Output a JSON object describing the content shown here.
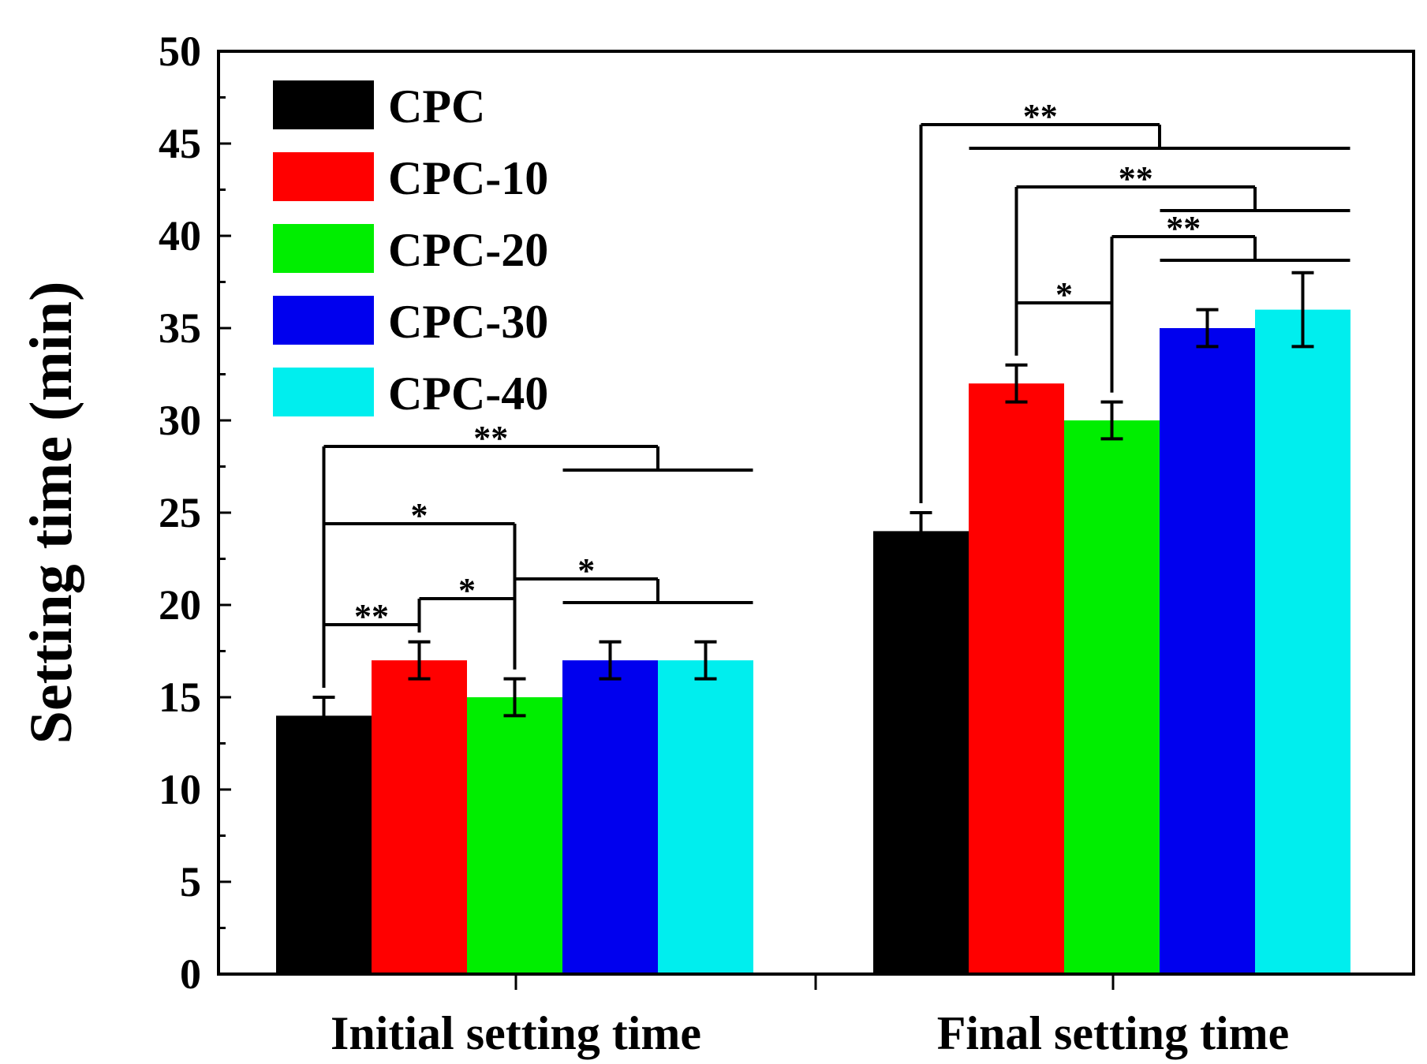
{
  "chart_data": {
    "type": "bar",
    "title": "",
    "xlabel": "",
    "ylabel": "Setting time (min)",
    "ylim": [
      0,
      50
    ],
    "yticks": [
      0,
      5,
      10,
      15,
      20,
      25,
      30,
      35,
      40,
      45,
      50
    ],
    "categories": [
      "Initial setting time",
      "Final setting time"
    ],
    "series": [
      {
        "name": "CPC",
        "color": "#000000",
        "values": [
          14,
          24
        ],
        "errors": [
          1,
          1
        ]
      },
      {
        "name": "CPC-10",
        "color": "#ff0000",
        "values": [
          17,
          32
        ],
        "errors": [
          1,
          1
        ]
      },
      {
        "name": "CPC-20",
        "color": "#00ee00",
        "values": [
          15,
          30
        ],
        "errors": [
          1,
          1
        ]
      },
      {
        "name": "CPC-30",
        "color": "#0000ee",
        "values": [
          17,
          35
        ],
        "errors": [
          1,
          1
        ]
      },
      {
        "name": "CPC-40",
        "color": "#00eeee",
        "values": [
          17,
          36
        ],
        "errors": [
          1,
          2
        ]
      }
    ],
    "legend_position": "top-left",
    "significance": [
      {
        "group": 0,
        "left": [
          0
        ],
        "right": [
          1
        ],
        "label": "**"
      },
      {
        "group": 0,
        "left": [
          1
        ],
        "right": [
          2
        ],
        "label": "*"
      },
      {
        "group": 0,
        "left": [
          0
        ],
        "right": [
          2
        ],
        "label": "*"
      },
      {
        "group": 0,
        "left": [
          2
        ],
        "right": [
          3,
          4
        ],
        "label": "*"
      },
      {
        "group": 0,
        "left": [
          0
        ],
        "right": [
          3,
          4
        ],
        "label": "**"
      },
      {
        "group": 1,
        "left": [
          1
        ],
        "right": [
          2
        ],
        "label": "*"
      },
      {
        "group": 1,
        "left": [
          2
        ],
        "right": [
          3,
          4
        ],
        "label": "**"
      },
      {
        "group": 1,
        "left": [
          1
        ],
        "right": [
          3,
          4
        ],
        "label": "**"
      },
      {
        "group": 1,
        "left": [
          0
        ],
        "right": [
          1,
          2,
          3,
          4
        ],
        "label": "**"
      }
    ]
  }
}
